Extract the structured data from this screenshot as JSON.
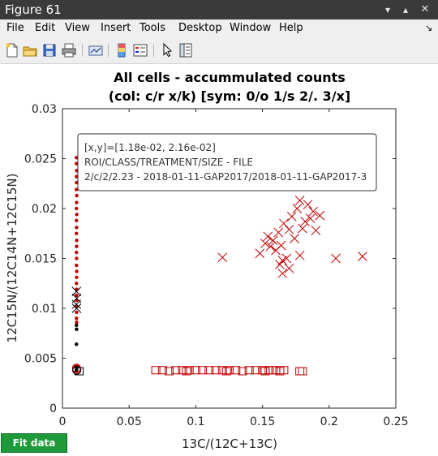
{
  "window": {
    "title": "Figure 61"
  },
  "menu": [
    "File",
    "Edit",
    "View",
    "Insert",
    "Tools",
    "Desktop",
    "Window",
    "Help"
  ],
  "toolbar_icons": [
    "new-file-icon",
    "open-folder-icon",
    "save-icon",
    "print-icon",
    "link-plot-icon",
    "colorbar-icon",
    "legend-icon",
    "pointer-icon",
    "property-editor-icon"
  ],
  "button": {
    "fit": "Fit data"
  },
  "chart_data": {
    "type": "scatter",
    "title": "All cells - accummulated counts",
    "subtitle": "(col: c/r x/k) [sym: 0/o 1/s 2/. 3/x]",
    "xlabel": "13C/(12C+13C)",
    "ylabel": "12C15N/(12C14N+12C15N)",
    "xlim": [
      0,
      0.25
    ],
    "ylim": [
      0,
      0.03
    ],
    "xticks": [
      "0",
      "0.05",
      "0.1",
      "0.15",
      "0.2",
      "0.25"
    ],
    "yticks": [
      "0",
      "0.005",
      "0.01",
      "0.015",
      "0.02",
      "0.025",
      "0.03"
    ],
    "series": [
      {
        "marker": "dot",
        "color": "#c00000",
        "x": [
          0.0105,
          0.0105,
          0.0107,
          0.0105,
          0.0106,
          0.0105,
          0.0107,
          0.0106,
          0.0105,
          0.0107,
          0.0105,
          0.0106,
          0.0105,
          0.0107,
          0.0106,
          0.0105,
          0.0106,
          0.0105,
          0.0107,
          0.0106,
          0.0105,
          0.0106,
          0.0105,
          0.0107,
          0.0105,
          0.0106,
          0.0105,
          0.0106,
          0.0107,
          0.0105
        ],
        "y": [
          0.0251,
          0.0245,
          0.0238,
          0.0232,
          0.0226,
          0.0219,
          0.0213,
          0.0206,
          0.02,
          0.0194,
          0.0188,
          0.0181,
          0.0175,
          0.0168,
          0.0162,
          0.0156,
          0.015,
          0.0143,
          0.0137,
          0.0131,
          0.0125,
          0.0119,
          0.0113,
          0.0108,
          0.0102,
          0.0096,
          0.009,
          0.0086,
          0.0042,
          0.004
        ]
      },
      {
        "marker": "dot",
        "color": "#000000",
        "x": [
          0.0105,
          0.0106,
          0.0105,
          0.0107,
          0.0105
        ],
        "y": [
          0.0083,
          0.0079,
          0.0064,
          0.004,
          0.0038
        ]
      },
      {
        "marker": "x",
        "color": "#c00000",
        "x": [
          0.12,
          0.148,
          0.152,
          0.154,
          0.156,
          0.158,
          0.16,
          0.162,
          0.164,
          0.165,
          0.166,
          0.168,
          0.17,
          0.172,
          0.174,
          0.176,
          0.178,
          0.18,
          0.182,
          0.184,
          0.186,
          0.188,
          0.19,
          0.193,
          0.17,
          0.205,
          0.225,
          0.178,
          0.163,
          0.165
        ],
        "y": [
          0.0151,
          0.0155,
          0.0165,
          0.0172,
          0.0162,
          0.0168,
          0.0158,
          0.0176,
          0.0163,
          0.0148,
          0.0185,
          0.015,
          0.0179,
          0.0192,
          0.017,
          0.02,
          0.0208,
          0.018,
          0.0187,
          0.0204,
          0.019,
          0.0197,
          0.0178,
          0.0193,
          0.014,
          0.015,
          0.0152,
          0.0153,
          0.0144,
          0.0135
        ]
      },
      {
        "marker": "x",
        "color": "#000000",
        "x": [
          0.0105,
          0.0107,
          0.0105,
          0.0106
        ],
        "y": [
          0.0117,
          0.011,
          0.0104,
          0.01
        ]
      },
      {
        "marker": "square",
        "color": "#c00000",
        "x": [
          0.07,
          0.075,
          0.08,
          0.085,
          0.09,
          0.093,
          0.095,
          0.1,
          0.105,
          0.11,
          0.115,
          0.12,
          0.123,
          0.125,
          0.13,
          0.135,
          0.14,
          0.145,
          0.15,
          0.152,
          0.155,
          0.158,
          0.16,
          0.163,
          0.166,
          0.178,
          0.18
        ],
        "y": [
          0.0038,
          0.0038,
          0.0037,
          0.0038,
          0.0038,
          0.0037,
          0.0038,
          0.0038,
          0.0038,
          0.0038,
          0.0038,
          0.0038,
          0.0037,
          0.0038,
          0.0038,
          0.0037,
          0.0038,
          0.0038,
          0.0038,
          0.0037,
          0.0038,
          0.0038,
          0.0038,
          0.0037,
          0.0038,
          0.0037,
          0.0037
        ]
      },
      {
        "marker": "square",
        "color": "#000000",
        "x": [
          0.0125
        ],
        "y": [
          0.0037
        ]
      },
      {
        "marker": "circle",
        "color": "#c00000",
        "x": [
          0.0105,
          0.0108
        ],
        "y": [
          0.004,
          0.0039
        ]
      },
      {
        "marker": "circle",
        "color": "#000000",
        "x": [
          0.0107
        ],
        "y": [
          0.0038
        ]
      }
    ],
    "datatip": {
      "line1": "[x,y]=[1.18e-02, 2.16e-02]",
      "line2": "ROI/CLASS/TREATMENT/SIZE - FILE",
      "line3": "2/c/2/2.23 - 2018-01-11-GAP2017/2018-01-11-GAP2017-3"
    }
  }
}
